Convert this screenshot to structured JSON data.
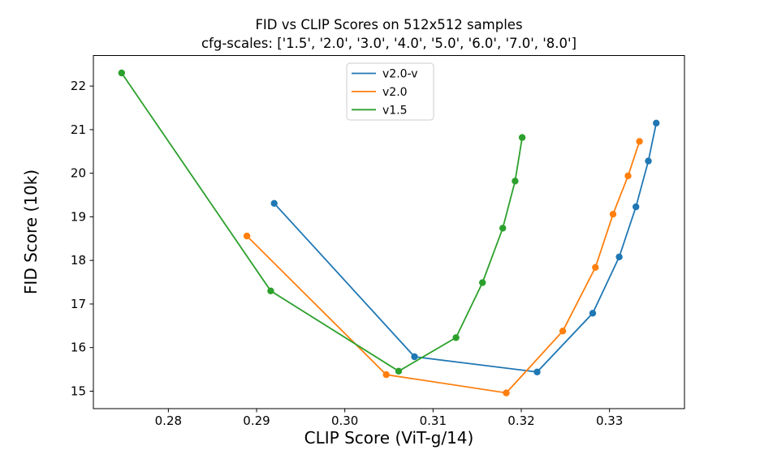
{
  "chart_data": {
    "type": "line",
    "title": "FID vs CLIP Scores on 512x512 samples",
    "subtitle": "cfg-scales: ['1.5', '2.0', '3.0', '4.0', '5.0', '6.0', '7.0', '8.0']",
    "xlabel": "CLIP Score (ViT-g/14)",
    "ylabel": "FID Score (10k)",
    "xlim": [
      0.2715,
      0.3385
    ],
    "ylim": [
      14.6,
      22.7
    ],
    "x_ticks": [
      0.28,
      0.29,
      0.3,
      0.31,
      0.32,
      0.33
    ],
    "x_tick_labels": [
      "0.28",
      "0.29",
      "0.30",
      "0.31",
      "0.32",
      "0.33"
    ],
    "y_ticks": [
      15,
      16,
      17,
      18,
      19,
      20,
      21,
      22
    ],
    "y_tick_labels": [
      "15",
      "16",
      "17",
      "18",
      "19",
      "20",
      "21",
      "22"
    ],
    "grid": false,
    "legend_position": "upper center",
    "cfg_scales": [
      "1.5",
      "2.0",
      "3.0",
      "4.0",
      "5.0",
      "6.0",
      "7.0",
      "8.0"
    ],
    "series": [
      {
        "name": "v2.0-v",
        "color": "#1f77b4",
        "points": [
          [
            0.292,
            19.31
          ],
          [
            0.3079,
            15.79
          ],
          [
            0.3218,
            15.44
          ],
          [
            0.3281,
            16.79
          ],
          [
            0.3311,
            18.08
          ],
          [
            0.333,
            19.23
          ],
          [
            0.3344,
            20.28
          ],
          [
            0.3353,
            21.15
          ]
        ]
      },
      {
        "name": "v2.0",
        "color": "#ff7f0e",
        "points": [
          [
            0.2889,
            18.56
          ],
          [
            0.3047,
            15.38
          ],
          [
            0.3183,
            14.96
          ],
          [
            0.3247,
            16.38
          ],
          [
            0.3284,
            17.84
          ],
          [
            0.3304,
            19.06
          ],
          [
            0.3321,
            19.94
          ],
          [
            0.3334,
            20.73
          ]
        ]
      },
      {
        "name": "v1.5",
        "color": "#2ca02c",
        "points": [
          [
            0.2747,
            22.3
          ],
          [
            0.2916,
            17.3
          ],
          [
            0.3061,
            15.46
          ],
          [
            0.3126,
            16.23
          ],
          [
            0.3156,
            17.49
          ],
          [
            0.3179,
            18.74
          ],
          [
            0.3193,
            19.82
          ],
          [
            0.3201,
            20.82
          ]
        ]
      }
    ],
    "style": {
      "frame_color": "#000000",
      "text_color": "#000000",
      "legend_border_color": "#cccccc",
      "background": "#ffffff"
    }
  }
}
